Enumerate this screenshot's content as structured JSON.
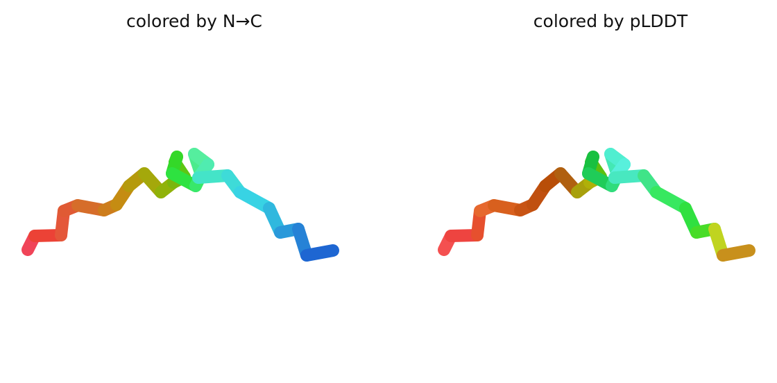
{
  "panels": [
    {
      "title": "colored by N→C",
      "segment_colors": [
        "#f04458",
        "#ec4236",
        "#e4573a",
        "#e05a34",
        "#d66d2a",
        "#cd7d1c",
        "#c58c12",
        "#b59a0c",
        "#a4a80b",
        "#90b20a",
        "#7ab60c",
        "#5ec614",
        "#3ccc18",
        "#34d828",
        "#2ee240",
        "#38e86a",
        "#4ceb8c",
        "#55ee9e",
        "#50ecb0",
        "#44e4c8",
        "#3edbd8",
        "#38d3e4",
        "#30b8de",
        "#2a99da",
        "#2682d6",
        "#1e66d2",
        "#1c4ed0",
        "#1a2ecc"
      ]
    },
    {
      "title": "colored by pLDDT",
      "segment_colors": [
        "#f45050",
        "#ee4440",
        "#e6502e",
        "#e6682e",
        "#d8601e",
        "#c85414",
        "#c05010",
        "#b84e08",
        "#b06010",
        "#a8a00c",
        "#b0b008",
        "#5cc010",
        "#3cc028",
        "#18c040",
        "#20cc58",
        "#30dc7c",
        "#44e8b4",
        "#50eed0",
        "#58f0dc",
        "#48e8c0",
        "#40e488",
        "#38e860",
        "#30e040",
        "#48dc28",
        "#c0d420",
        "#c8901c",
        "#c86418",
        "#c84418"
      ]
    }
  ]
}
